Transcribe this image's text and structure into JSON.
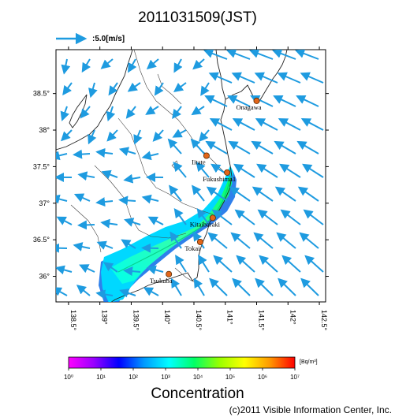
{
  "title": "2011031509(JST)",
  "scale_arrow": {
    "label": ":5.0[m/s]",
    "color": "#1e9be0"
  },
  "map": {
    "lon_range": [
      138.3,
      142.6
    ],
    "lat_range": [
      35.65,
      39.1
    ],
    "lon_ticks": [
      "138.5°",
      "139°",
      "139.5°",
      "140°",
      "140.5°",
      "141°",
      "141.5°",
      "142°",
      "142.5°"
    ],
    "lat_ticks": [
      "38.5°",
      "38°",
      "37.5°",
      "37°",
      "36.5°",
      "36°"
    ],
    "sites": [
      {
        "name": "Onagawa",
        "lon": 141.5,
        "lat": 38.4
      },
      {
        "name": "Iitate",
        "lon": 140.7,
        "lat": 37.65
      },
      {
        "name": "Fukushima1",
        "lon": 141.03,
        "lat": 37.42
      },
      {
        "name": "Kitaibaraki",
        "lon": 140.8,
        "lat": 36.8
      },
      {
        "name": "Tokai",
        "lon": 140.6,
        "lat": 36.47
      },
      {
        "name": "Tsukuba",
        "lon": 140.1,
        "lat": 36.03
      }
    ],
    "arrow_color": "#1e9be0",
    "site_color": "#e2661a"
  },
  "colorbar": {
    "title": "Concentration",
    "unit": "[Bq/m³]",
    "tick_labels": [
      "10⁰",
      "10¹",
      "10²",
      "10³",
      "10⁴",
      "10⁵",
      "10⁶",
      "10⁷"
    ],
    "colors": [
      "#ff00ff",
      "#9900ff",
      "#0000ff",
      "#0099ff",
      "#00ffff",
      "#00ff66",
      "#99ff00",
      "#ffff00",
      "#ff9900",
      "#ff0000"
    ]
  },
  "credit": "(c)2011 Visible Information Center, Inc."
}
